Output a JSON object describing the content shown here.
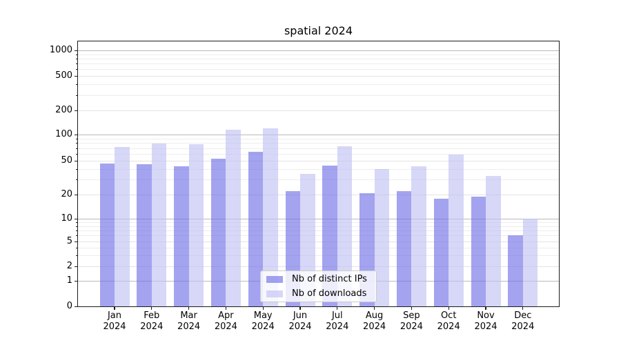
{
  "chart_data": {
    "type": "bar",
    "title": "spatial 2024",
    "xlabel": "",
    "ylabel": "",
    "yscale": "symlog",
    "ylim": [
      0,
      1400
    ],
    "grid": true,
    "legend_position": "lower center",
    "y_ticks": [
      0,
      1,
      2,
      5,
      10,
      20,
      50,
      100,
      200,
      500,
      1000
    ],
    "categories": [
      "Jan 2024",
      "Feb 2024",
      "Mar 2024",
      "Apr 2024",
      "May 2024",
      "Jun 2024",
      "Jul 2024",
      "Aug 2024",
      "Sep 2024",
      "Oct 2024",
      "Nov 2024",
      "Dec 2024"
    ],
    "series": [
      {
        "name": "Nb of distinct IPs",
        "color": "#a4a4f0",
        "fill": "rgba(110,110,232,0.63)",
        "values": [
          46,
          45,
          43,
          53,
          63,
          22,
          44,
          21,
          22,
          18,
          19,
          6
        ]
      },
      {
        "name": "Nb of downloads",
        "color": "#d7d7f7",
        "fill": "rgba(192,192,242,0.63)",
        "values": [
          72,
          79,
          78,
          115,
          120,
          35,
          74,
          40,
          43,
          59,
          33,
          10
        ]
      }
    ],
    "colors": {
      "major_gridline": "#b9b9b9",
      "labeled_gridline": "#e3e3e3",
      "minor_gridline": "#ededed",
      "axis": "#1a1a1a"
    }
  }
}
